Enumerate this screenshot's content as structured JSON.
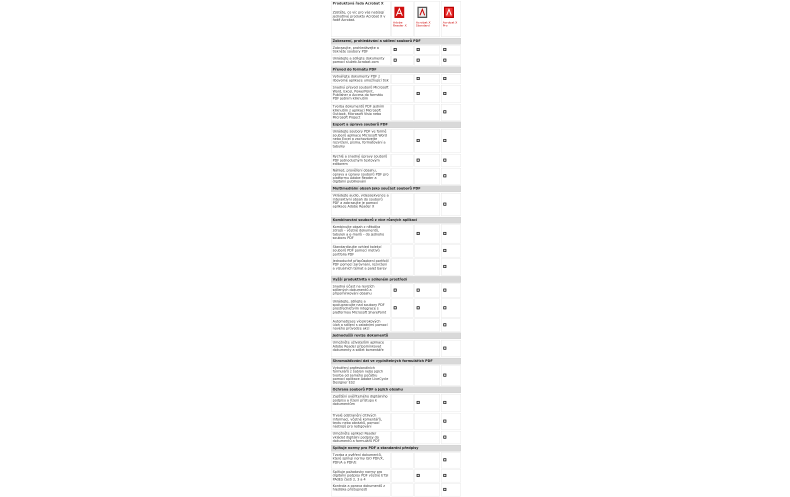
{
  "header": {
    "title": "Produktová řada Acrobat X",
    "intro": "Zjistěte, co víc pro vás nabízejí jednotlivé produkty Acrobat X v řadě Acrobat.",
    "products": [
      {
        "name": "Adobe Reader X",
        "icon": "adobe-reader-icon"
      },
      {
        "name": "Acrobat X Standard",
        "icon": "acrobat-standard-icon"
      },
      {
        "name": "Acrobat X Pro",
        "icon": "acrobat-pro-icon"
      }
    ]
  },
  "sections": [
    {
      "title": "Zobrazení, prohledávání a sdílení souborů PDF",
      "rows": [
        {
          "text": "Zobrazujte, prohledávejte a tiskněte soubory PDF",
          "checks": [
            1,
            1,
            1
          ]
        },
        {
          "text": "Ukládejte a sdílejte dokumenty pomocí služeb Acrobat.com",
          "checks": [
            1,
            1,
            1
          ]
        }
      ]
    },
    {
      "title": "Převod do formátu PDF",
      "rows": [
        {
          "text": "Vytvářejte dokumenty PDF z libovolné aplikace umožňující tisk",
          "checks": [
            0,
            1,
            1
          ]
        },
        {
          "text": "Snadný převod souborů Microsoft Word, Excel, PowerPoint, Publisher a Access do formátu PDF jedním kliknutím",
          "checks": [
            0,
            1,
            1
          ]
        },
        {
          "text": "Tvorba dokumentů PDF jedním kliknutím z aplikací Microsoft Outlook, Microsoft Visio nebo Microsoft Project",
          "checks": [
            0,
            0,
            1
          ]
        }
      ]
    },
    {
      "title": "Export a úprava souborů PDF",
      "rows": [
        {
          "text": "Ukládejte soubory PDF ve formě souborů aplikace Microsoft Word nebo Excel a zachovávejte rozvržení, písma, formátování a tabulky",
          "checks": [
            0,
            1,
            1
          ]
        },
        {
          "text": "Rychlé a snadné úpravy souborů PDF jednoduchým textovým editorem",
          "checks": [
            0,
            1,
            1
          ]
        },
        {
          "text": "Náhled, prověření obsahu, opravy a úpravy souborů PDF pro platformu Adobe Reader a digitální publikování",
          "checks": [
            0,
            0,
            1
          ]
        }
      ]
    },
    {
      "title": "Multimediální obsah jako součást souborů PDF",
      "rows": [
        {
          "text": "Vkládejte audio, videosekvence a interaktivní obsah do souborů PDF a zobrazujte je pomocí aplikace Adobe Reader X",
          "checks": [
            0,
            0,
            1
          ]
        }
      ]
    },
    {
      "title": "Kombinování souborů z více různých aplikací",
      "rows": [
        {
          "text": "Kombinujte obsah z několika zdrojů – včetně dokumentů, tabulek a e-mailů – do jednoho souboru PDF",
          "checks": [
            0,
            1,
            1
          ]
        },
        {
          "text": "Standardizujte vzhled kolekcí souborů PDF pomocí motivů portfolia PDF",
          "checks": [
            0,
            0,
            1
          ]
        },
        {
          "text": "Jednoduché přizpůsobení portfolií PDF pomocí zarovnání, rozvržení a vizuálních témat a palet barev",
          "checks": [
            0,
            0,
            1
          ]
        }
      ]
    },
    {
      "title": "Vyšší produktivita v sdíleném prostředí",
      "rows": [
        {
          "text": "Snadná účast na revizích sdílených dokumentů a připomínkování obsahu",
          "checks": [
            1,
            1,
            1
          ]
        },
        {
          "text": "Ukládejte, sdílejte a spolupracujte nad soubory PDF prostřednictvím integrace s platformou Microsoft SharePoint",
          "checks": [
            1,
            1,
            1
          ]
        },
        {
          "text": "Automatizace vícekrokových úloh a sdílení s ostatními pomocí nového průvodce akcí",
          "checks": [
            0,
            0,
            1
          ]
        }
      ]
    },
    {
      "title": "Jednodušší revize dokumentů",
      "rows": [
        {
          "text": "Umožněte uživatelům aplikace Adobe Reader připomínkovat dokumenty a sdílet komentáře",
          "checks": [
            0,
            0,
            1
          ]
        }
      ]
    },
    {
      "title": "Shromažďování dat ve vyplnitelných formulářích PDF",
      "rows": [
        {
          "text": "Vytváření profesionálních formulářů z šablon nebo jejich tvorba od samého počátku pomocí aplikace Adobe LiveCycle Designer ES2",
          "checks": [
            0,
            0,
            1
          ]
        }
      ]
    },
    {
      "title": "Ochrana souborů PDF a jejich obsahu",
      "rows": [
        {
          "text": "Zajištění ověřitelného digitálního podpisu a řízení přístupu k dokumentům",
          "checks": [
            0,
            1,
            1
          ]
        },
        {
          "text": "Trvalé odstranění citlivých informací, včetně komentářů, textu nebo obrázků, pomocí nástrojů pro redigování",
          "checks": [
            0,
            0,
            1
          ]
        },
        {
          "text": "Umožněte aplikaci Reader vkládat digitální podpisy do dokumentů a formulářů PDF",
          "checks": [
            0,
            0,
            1
          ]
        }
      ]
    },
    {
      "title": "Splňuje normy pro PDF a standardní předpisy",
      "rows": [
        {
          "text": "Tvorba a ověření dokumentů, které splňují normy ISO PDF/X, PDF/A a PDF/E",
          "checks": [
            0,
            0,
            1
          ]
        },
        {
          "text": "Splňuje požadavky normy pro digitální podpisy PDF včetně ETSI PAdES částí 2, 3 a 4",
          "checks": [
            0,
            1,
            1
          ]
        },
        {
          "text": "Kontrola a oprava dokumentů z hlediska přístupnosti",
          "checks": [
            0,
            0,
            1
          ]
        }
      ]
    }
  ]
}
